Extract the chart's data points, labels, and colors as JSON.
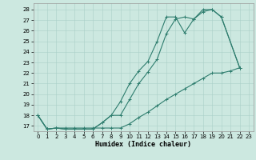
{
  "xlabel": "Humidex (Indice chaleur)",
  "bg_color": "#cce8e0",
  "line_color": "#2e7d6e",
  "grid_color": "#aacfc8",
  "xlim": [
    -0.5,
    23.5
  ],
  "ylim": [
    16.5,
    28.6
  ],
  "xticks": [
    0,
    1,
    2,
    3,
    4,
    5,
    6,
    7,
    8,
    9,
    10,
    11,
    12,
    13,
    14,
    15,
    16,
    17,
    18,
    19,
    20,
    21,
    22,
    23
  ],
  "yticks": [
    17,
    18,
    19,
    20,
    21,
    22,
    23,
    24,
    25,
    26,
    27,
    28
  ],
  "line1_x": [
    0,
    1,
    2,
    3,
    4,
    5,
    6,
    7,
    8,
    9,
    10,
    11,
    12,
    13,
    14,
    15,
    16,
    17,
    18,
    19,
    20,
    22
  ],
  "line1_y": [
    18,
    16.7,
    16.8,
    16.7,
    16.7,
    16.7,
    16.7,
    17.3,
    18.0,
    19.3,
    21.0,
    22.2,
    23.1,
    25.0,
    27.3,
    27.3,
    25.8,
    27.1,
    27.8,
    28.0,
    27.3,
    22.5
  ],
  "line2_x": [
    0,
    1,
    2,
    3,
    4,
    5,
    6,
    7,
    8,
    9,
    10,
    11,
    12,
    13,
    14,
    15,
    16,
    17,
    18,
    19,
    20,
    22
  ],
  "line2_y": [
    18,
    16.7,
    16.8,
    16.7,
    16.7,
    16.7,
    16.7,
    17.3,
    18.0,
    18.0,
    19.5,
    21.0,
    22.1,
    23.3,
    25.7,
    27.1,
    27.3,
    27.1,
    28.0,
    28.0,
    27.3,
    22.5
  ],
  "line3_x": [
    0,
    1,
    2,
    3,
    4,
    5,
    6,
    7,
    8,
    9,
    10,
    11,
    12,
    13,
    14,
    15,
    16,
    17,
    18,
    19,
    20,
    21,
    22
  ],
  "line3_y": [
    18,
    16.7,
    16.8,
    16.8,
    16.8,
    16.8,
    16.8,
    16.8,
    16.8,
    16.8,
    17.2,
    17.8,
    18.3,
    18.9,
    19.5,
    20.0,
    20.5,
    21.0,
    21.5,
    22.0,
    22.0,
    22.2,
    22.5
  ],
  "font_size_tick": 5.0,
  "font_size_label": 6.0,
  "lw": 0.8,
  "ms": 2.5
}
